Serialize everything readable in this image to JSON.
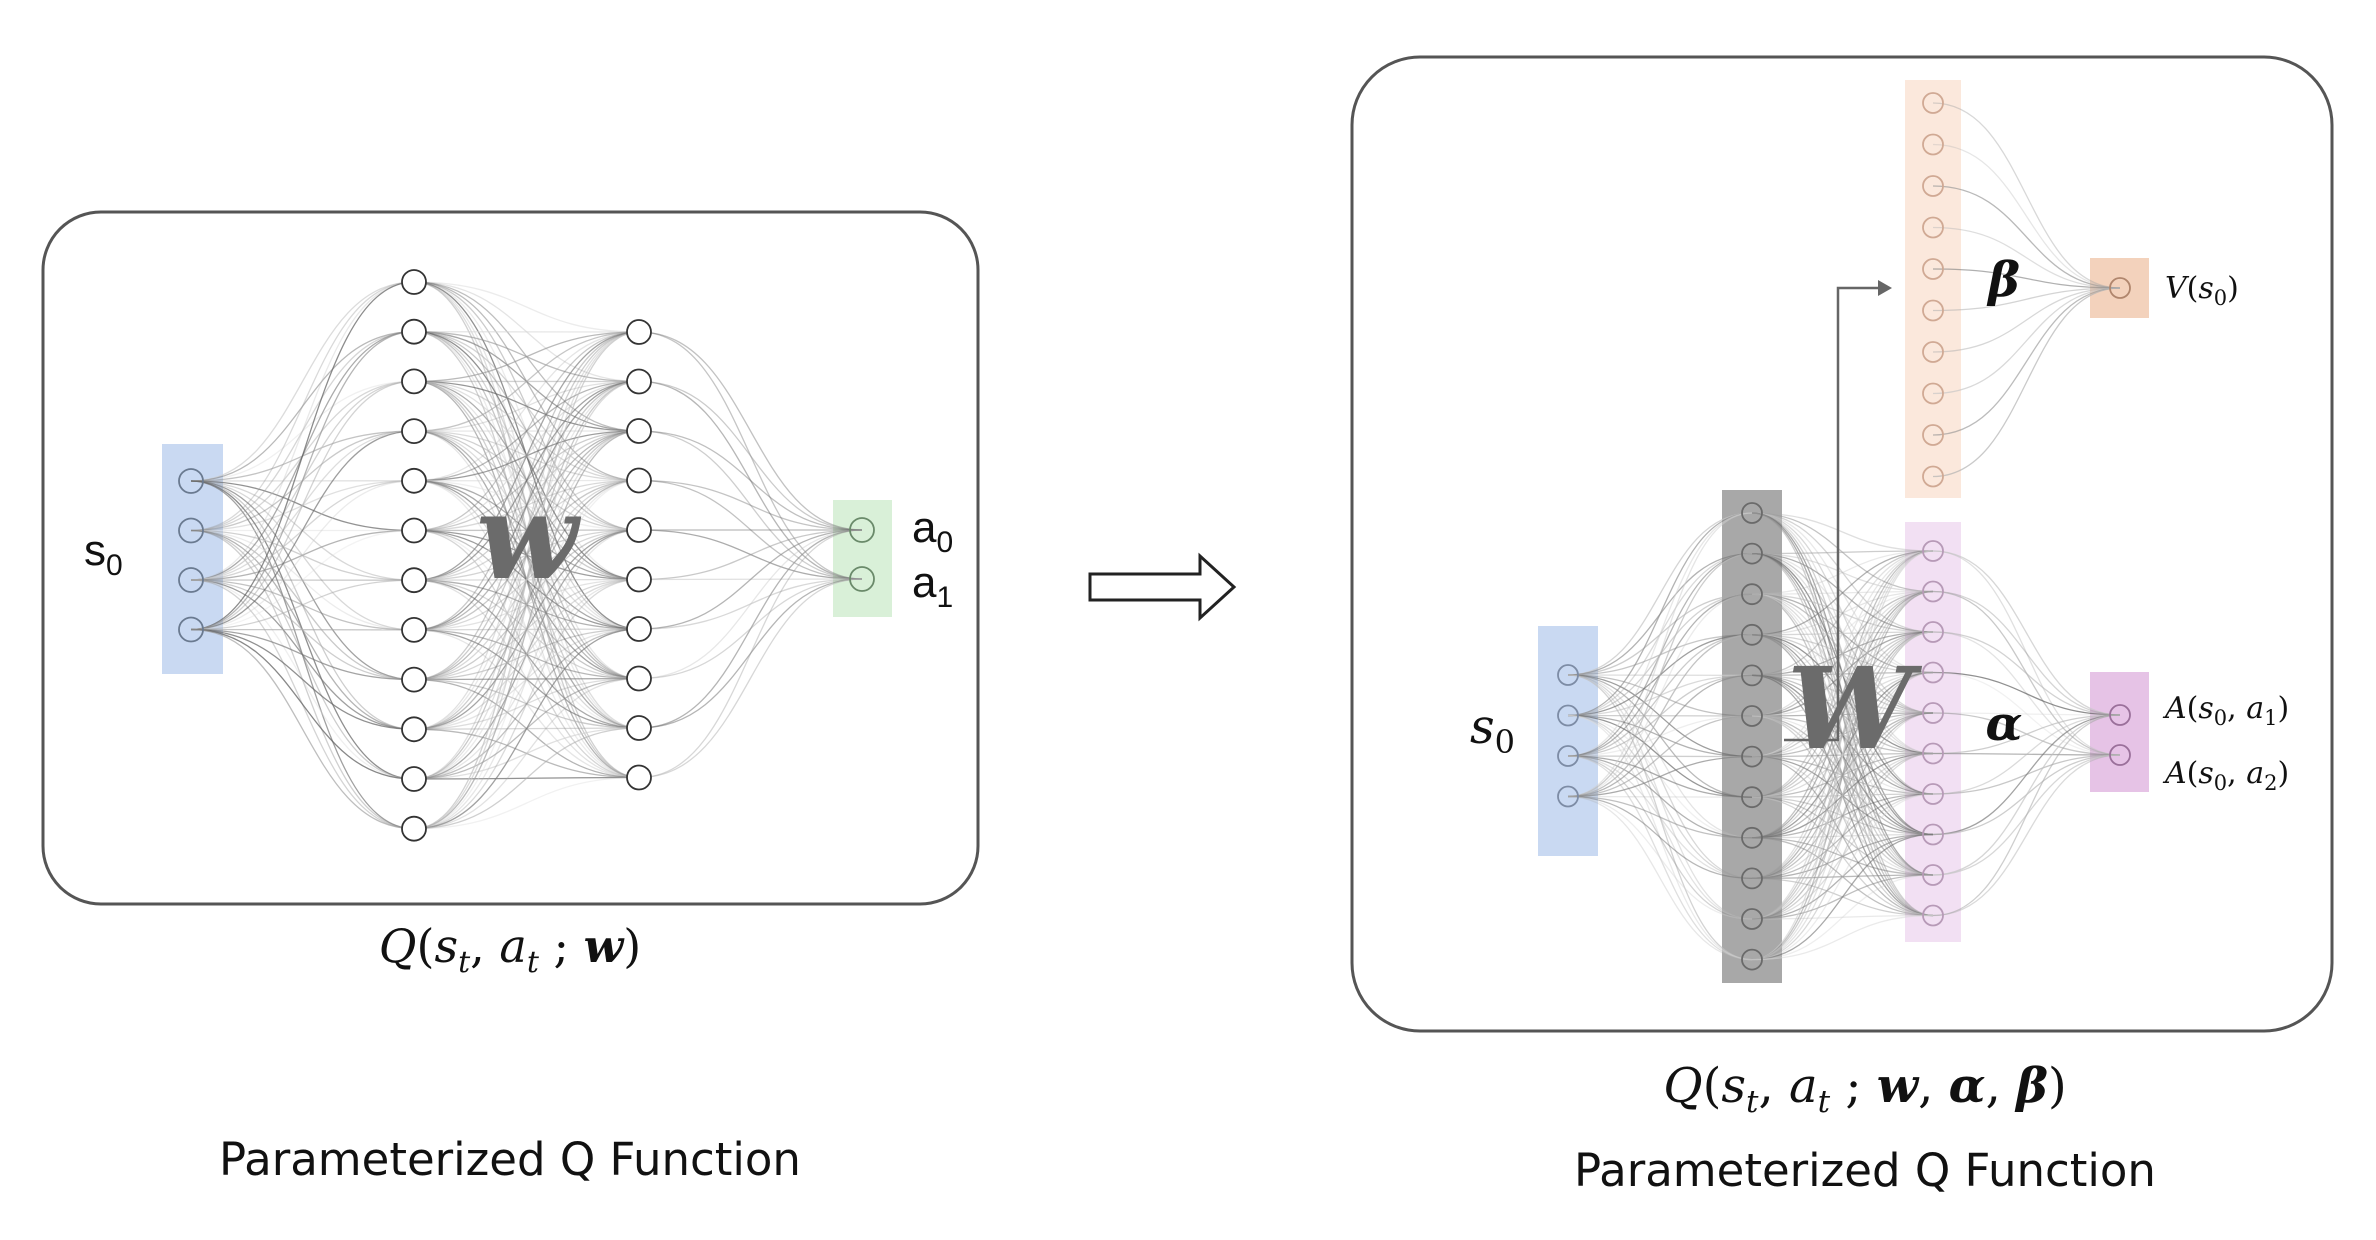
{
  "left": {
    "input_label": {
      "base": "s",
      "sub": "0"
    },
    "weight_symbol": "w",
    "outputs": [
      {
        "base": "a",
        "sub": "0"
      },
      {
        "base": "a",
        "sub": "1"
      }
    ],
    "formula": {
      "q": "Q",
      "open": "(",
      "s": "s",
      "s_sub": "t",
      "comma": ", ",
      "a": "a",
      "a_sub": "t",
      "semi": " ; ",
      "w": "w",
      "close": ")"
    },
    "caption": "Parameterized Q Function"
  },
  "right": {
    "input_label": {
      "base": "s",
      "sub": "0"
    },
    "weight_symbol": "W",
    "beta_symbol": "β",
    "alpha_symbol": "α",
    "value_label": {
      "f": "V",
      "open": "(",
      "s": "s",
      "s_sub": "0",
      "close": ")"
    },
    "advantage_labels": [
      {
        "f": "A",
        "open": "(",
        "s": "s",
        "s_sub": "0",
        "comma": ", ",
        "a": "a",
        "a_sub": "1",
        "close": ")"
      },
      {
        "f": "A",
        "open": "(",
        "s": "s",
        "s_sub": "0",
        "comma": ", ",
        "a": "a",
        "a_sub": "2",
        "close": ")"
      }
    ],
    "formula": {
      "q": "Q",
      "open": "(",
      "s": "s",
      "s_sub": "t",
      "comma": ", ",
      "a": "a",
      "a_sub": "t",
      "semi": " ; ",
      "w": "w",
      "c1": ", ",
      "alpha": "α",
      "c2": ", ",
      "beta": "β",
      "close": ")"
    },
    "caption": "Parameterized Q Function"
  },
  "colors": {
    "input_blue": "#c9d9f2",
    "output_green": "#d9f0d8",
    "hidden_gray": "#a8a8a8",
    "beta_peach": "#fbe8dc",
    "alpha_lilac": "#f2e0f3",
    "value_orange": "#f3d2bc",
    "adv_purple": "#e6c3e6",
    "frame": "#555555"
  }
}
